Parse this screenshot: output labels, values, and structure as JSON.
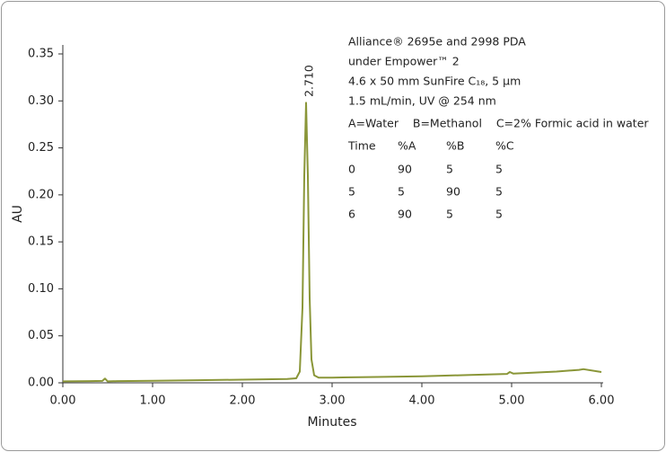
{
  "chart_data": {
    "type": "line",
    "x_label": "Minutes",
    "y_label": "AU",
    "xlim": [
      0,
      6
    ],
    "ylim": [
      0,
      0.35
    ],
    "xticks": [
      {
        "value": 0,
        "label": "0.00"
      },
      {
        "value": 1,
        "label": "1.00"
      },
      {
        "value": 2,
        "label": "2.00"
      },
      {
        "value": 3,
        "label": "3.00"
      },
      {
        "value": 4,
        "label": "4.00"
      },
      {
        "value": 5,
        "label": "5.00"
      },
      {
        "value": 6,
        "label": "6.00"
      }
    ],
    "yticks": [
      {
        "value": 0,
        "label": "0.00"
      },
      0.05,
      {
        "value": 0.1,
        "label": "0.10"
      },
      0.15,
      {
        "value": 0.2,
        "label": "0.20"
      },
      0.25,
      {
        "value": 0.3,
        "label": "0.30"
      },
      0.35
    ],
    "series": [
      {
        "color": "#8a9638",
        "x": [
          0,
          0.3,
          0.44,
          0.47,
          0.5,
          0.6,
          1.0,
          1.5,
          2.0,
          2.5,
          2.6,
          2.64,
          2.67,
          2.69,
          2.71,
          2.73,
          2.75,
          2.77,
          2.8,
          2.85,
          3.0,
          3.5,
          4.0,
          4.5,
          4.95,
          4.98,
          5.02,
          5.5,
          5.75,
          5.8,
          6.0
        ],
        "values": [
          0.0015,
          0.0018,
          0.002,
          0.0045,
          0.0015,
          0.0018,
          0.0022,
          0.0028,
          0.0033,
          0.004,
          0.0048,
          0.012,
          0.08,
          0.22,
          0.298,
          0.22,
          0.09,
          0.025,
          0.008,
          0.0055,
          0.0055,
          0.0062,
          0.007,
          0.0082,
          0.0095,
          0.0115,
          0.0098,
          0.012,
          0.0138,
          0.0145,
          0.0115
        ]
      }
    ],
    "peak_labels": [
      {
        "value": 2.71,
        "label": "2.710"
      }
    ],
    "annotations": [
      "Alliance® 2695e and 2998 PDA",
      "under Empower™ 2",
      "4.6 x 50 mm SunFire C₁₈, 5 µm",
      "1.5 mL/min, UV @ 254 nm",
      "A=Water    B=Methanol    C=2% Formic acid in water"
    ],
    "gradient_table": {
      "header": [
        "Time",
        "%A",
        "%B",
        "%C"
      ],
      "rows": [
        [
          0,
          90,
          5,
          5
        ],
        [
          5,
          5,
          90,
          5
        ],
        [
          6,
          90,
          5,
          5
        ]
      ]
    }
  }
}
